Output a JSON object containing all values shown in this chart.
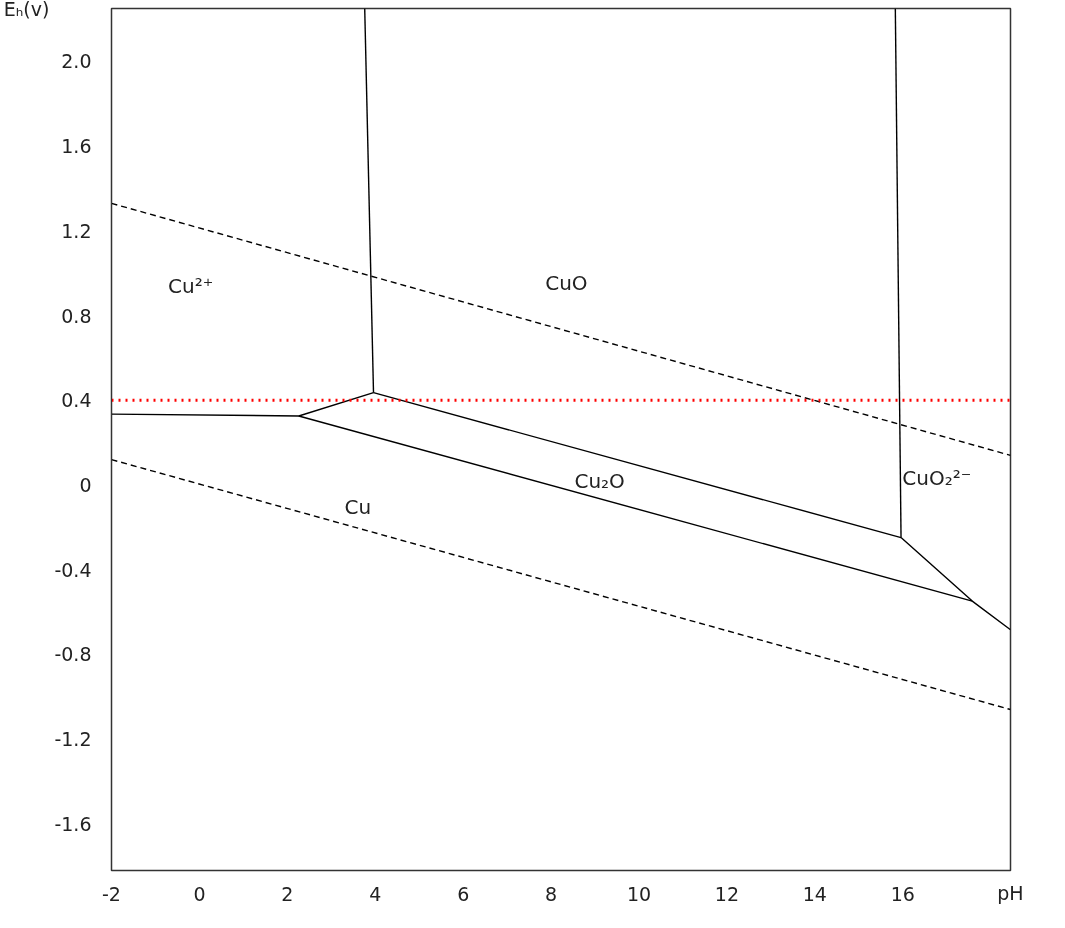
{
  "chart_data": {
    "type": "line",
    "xlabel": "pH",
    "ylabel": "Eₕ(v)",
    "xlim": [
      -2,
      18.45
    ],
    "ylim": [
      -1.82,
      2.25
    ],
    "xticks": [
      -2,
      0,
      2,
      4,
      6,
      8,
      10,
      12,
      14,
      16
    ],
    "yticks": [
      -1.6,
      -1.2,
      -0.8,
      -0.4,
      0,
      0.4,
      0.8,
      1.2,
      1.6,
      {
        "value": 2,
        "label": "2.0"
      }
    ],
    "grid": false,
    "marker": "none",
    "series": [
      {
        "color": "#000000",
        "line_style": "dashed",
        "x": [
          -2,
          18.45
        ],
        "values": [
          1.33,
          0.14
        ]
      },
      {
        "color": "#000000",
        "line_style": "dashed",
        "x": [
          -2,
          18.45
        ],
        "values": [
          0.12,
          -1.06
        ]
      },
      {
        "color": "#000000",
        "line_style": "solid",
        "x": [
          -2,
          2.26,
          3.96
        ],
        "values": [
          0.335,
          0.326,
          0.436
        ]
      },
      {
        "color": "#000000",
        "line_style": "solid",
        "x": [
          3.96,
          3.76
        ],
        "values": [
          0.436,
          2.25
        ]
      },
      {
        "color": "#000000",
        "line_style": "solid",
        "x": [
          3.96,
          15.96
        ],
        "values": [
          0.436,
          -0.248
        ]
      },
      {
        "color": "#000000",
        "line_style": "solid",
        "x": [
          15.96,
          15.83
        ],
        "values": [
          -0.248,
          2.25
        ]
      },
      {
        "color": "#000000",
        "line_style": "solid",
        "x": [
          2.26,
          17.58
        ],
        "values": [
          0.326,
          -0.548
        ]
      },
      {
        "color": "#000000",
        "line_style": "solid",
        "x": [
          15.96,
          17.58,
          18.45
        ],
        "values": [
          -0.248,
          -0.548,
          -0.683
        ]
      }
    ],
    "ref_lines": [
      {
        "axis": "y",
        "value": 0.4,
        "color": "#ff0000",
        "line_style": "dotted"
      }
    ],
    "annotations": [
      "Cu²⁺",
      "CuO",
      "Cu₂O",
      "Cu",
      "CuO₂²⁻"
    ]
  }
}
